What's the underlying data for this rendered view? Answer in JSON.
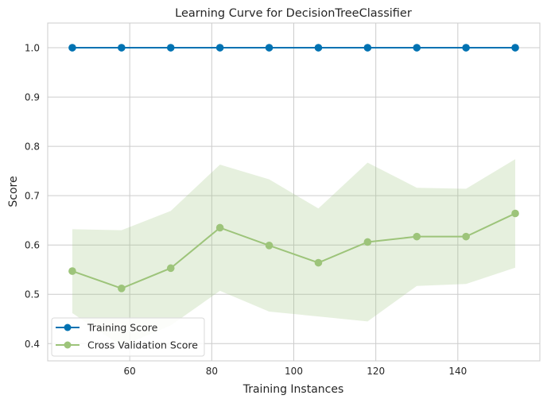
{
  "chart_data": {
    "type": "line",
    "title": "Learning Curve for DecisionTreeClassifier",
    "xlabel": "Training Instances",
    "ylabel": "Score",
    "xlim": [
      40,
      160
    ],
    "ylim": [
      0.365,
      1.05
    ],
    "xticks": [
      60,
      80,
      100,
      120,
      140
    ],
    "yticks": [
      0.4,
      0.5,
      0.6,
      0.7,
      0.8,
      0.9,
      1.0
    ],
    "grid": true,
    "legend_position": "lower-left",
    "x": [
      46,
      58,
      70,
      82,
      94,
      106,
      118,
      130,
      142,
      154
    ],
    "series": [
      {
        "name": "Training Score",
        "color": "#0072b2",
        "values": [
          1.0,
          1.0,
          1.0,
          1.0,
          1.0,
          1.0,
          1.0,
          1.0,
          1.0,
          1.0
        ],
        "band_lower": [
          1.0,
          1.0,
          1.0,
          1.0,
          1.0,
          1.0,
          1.0,
          1.0,
          1.0,
          1.0
        ],
        "band_upper": [
          1.0,
          1.0,
          1.0,
          1.0,
          1.0,
          1.0,
          1.0,
          1.0,
          1.0,
          1.0
        ]
      },
      {
        "name": "Cross Validation Score",
        "color": "#9dc47a",
        "values": [
          0.547,
          0.512,
          0.553,
          0.635,
          0.599,
          0.564,
          0.606,
          0.617,
          0.617,
          0.664
        ],
        "band_lower": [
          0.462,
          0.395,
          0.437,
          0.507,
          0.465,
          0.455,
          0.445,
          0.517,
          0.521,
          0.554
        ],
        "band_upper": [
          0.632,
          0.63,
          0.669,
          0.763,
          0.733,
          0.674,
          0.767,
          0.716,
          0.714,
          0.774
        ]
      }
    ]
  }
}
